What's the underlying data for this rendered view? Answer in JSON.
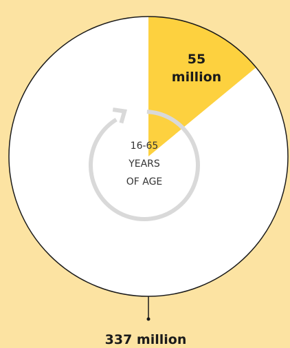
{
  "chart_data": {
    "type": "pie",
    "slices": [
      {
        "label": "55 million",
        "value": 55,
        "color": "#FDD13F"
      },
      {
        "label": "337 million",
        "value": 337,
        "color": "#FFFFFF"
      }
    ],
    "center_label": [
      "16-65",
      "YEARS",
      "OF AGE"
    ]
  },
  "colors": {
    "background": "#FCE3A2",
    "outline": "#1A1A1A",
    "ring": "#D9D9D9"
  }
}
